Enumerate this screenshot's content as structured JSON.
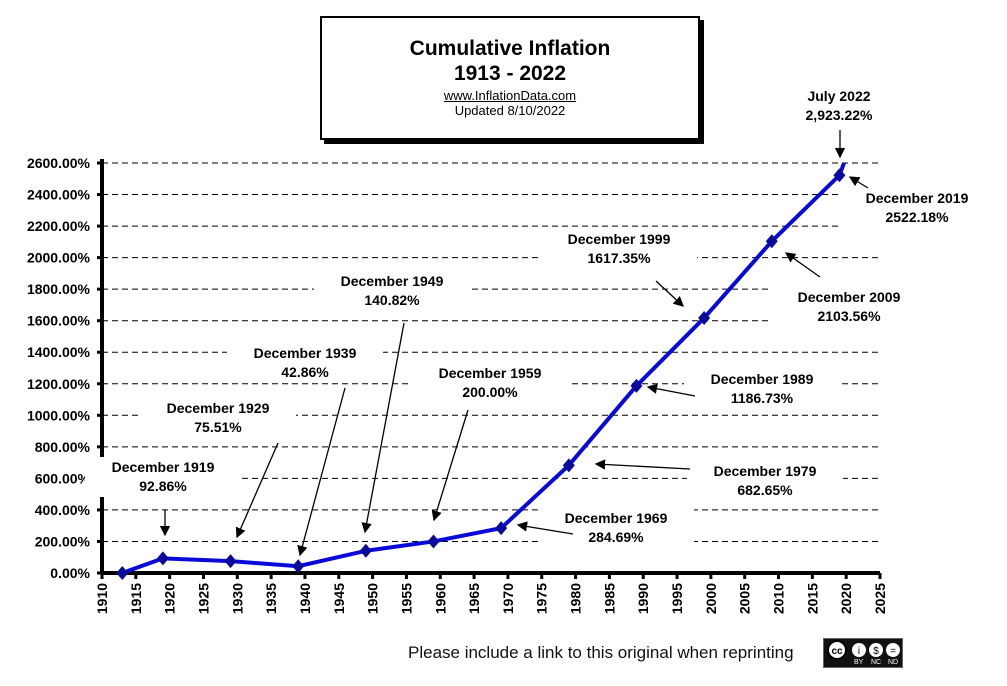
{
  "title": {
    "line1": "Cumulative Inflation",
    "line2": "1913 - 2022",
    "website": "www.InflationData.com",
    "updated": "Updated   8/10/2022"
  },
  "footer": {
    "text": "Please include a link to this original when reprinting",
    "license_icon": "cc-by-nc-nd-icon"
  },
  "chart_data": {
    "type": "line",
    "title": "Cumulative Inflation 1913 - 2022",
    "xlabel": "",
    "ylabel": "",
    "xlim": [
      1910,
      2025
    ],
    "ylim": [
      0,
      2600
    ],
    "x_ticks": [
      "1910",
      "1915",
      "1920",
      "1925",
      "1930",
      "1935",
      "1940",
      "1945",
      "1950",
      "1955",
      "1960",
      "1965",
      "1970",
      "1975",
      "1980",
      "1985",
      "1990",
      "1995",
      "2000",
      "2005",
      "2010",
      "2015",
      "2020",
      "2025"
    ],
    "y_ticks": [
      "0.00%",
      "200.00%",
      "400.00%",
      "600.00%",
      "800.00%",
      "1000.00%",
      "1200.00%",
      "1400.00%",
      "1600.00%",
      "1800.00%",
      "2000.00%",
      "2200.00%",
      "2400.00%",
      "2600.00%"
    ],
    "grid": "horizontal dashed",
    "line_color": "#0a0ad8",
    "series": [
      {
        "x": [
          1913,
          1919,
          1929,
          1939,
          1949,
          1959,
          1969,
          1979,
          1989,
          1999,
          2009,
          2019,
          2022.5
        ],
        "y": [
          0,
          92.86,
          75.51,
          42.86,
          140.82,
          200.0,
          284.69,
          682.65,
          1186.73,
          1617.35,
          2103.56,
          2522.18,
          2923.22
        ]
      }
    ],
    "annotations": [
      {
        "label": "December 1919",
        "value": "92.86%"
      },
      {
        "label": "December 1929",
        "value": "75.51%"
      },
      {
        "label": "December 1939",
        "value": "42.86%"
      },
      {
        "label": "December 1949",
        "value": "140.82%"
      },
      {
        "label": "December 1959",
        "value": "200.00%"
      },
      {
        "label": "December 1969",
        "value": "284.69%"
      },
      {
        "label": "December 1979",
        "value": "682.65%"
      },
      {
        "label": "December 1989",
        "value": "1186.73%"
      },
      {
        "label": "December 1999",
        "value": "1617.35%"
      },
      {
        "label": "December 2009",
        "value": "2103.56%"
      },
      {
        "label": "December 2019",
        "value": "2522.18%"
      },
      {
        "label": "July 2022",
        "value": "2,923.22%"
      }
    ]
  }
}
